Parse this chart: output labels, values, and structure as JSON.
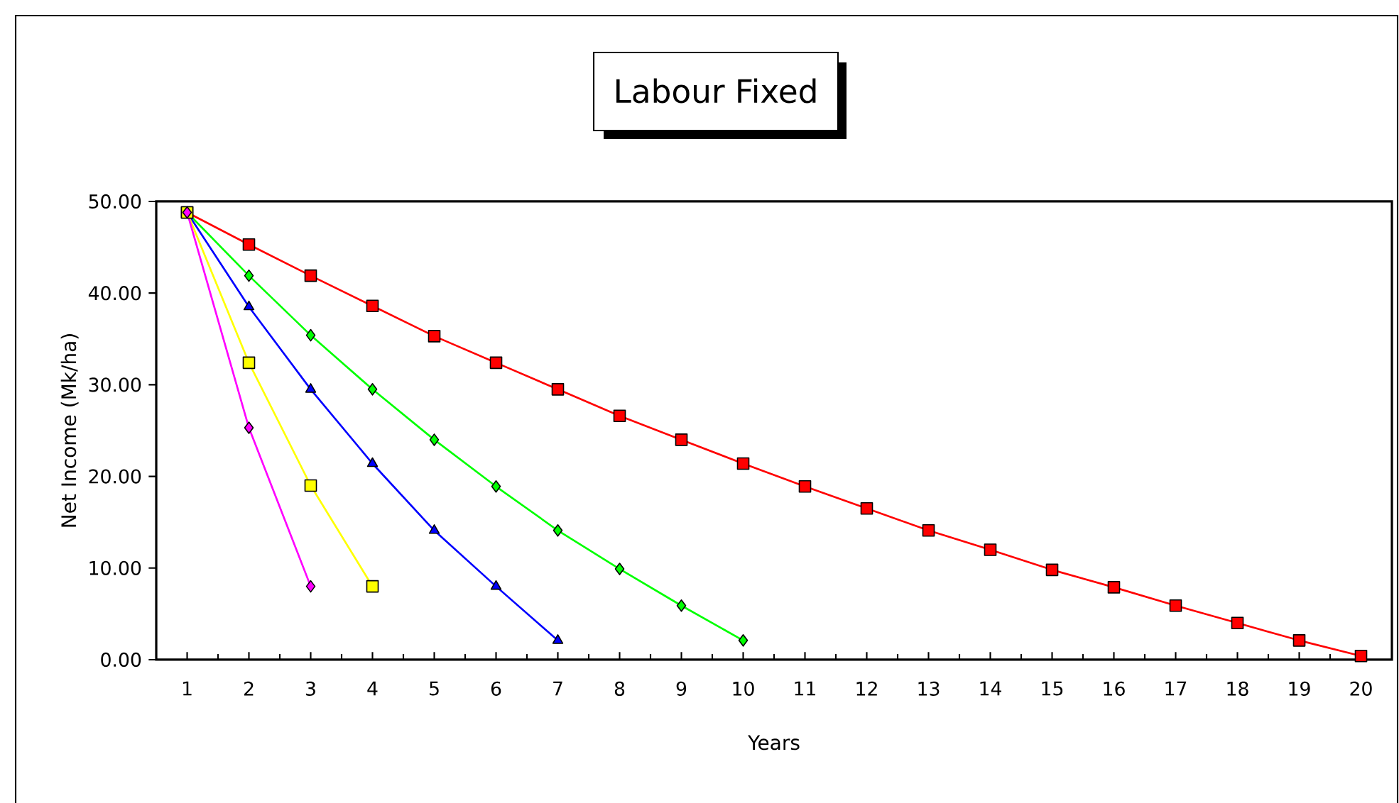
{
  "chart_data": {
    "type": "line",
    "title": "Labour Fixed",
    "xlabel": "Years",
    "ylabel": "Net Income (Mk/ha)",
    "categories": [
      "1",
      "2",
      "3",
      "4",
      "5",
      "6",
      "7",
      "8",
      "9",
      "10",
      "11",
      "12",
      "13",
      "14",
      "15",
      "16",
      "17",
      "18",
      "19",
      "20"
    ],
    "ylim": [
      0,
      50
    ],
    "yticks": [
      {
        "value": 0,
        "label": "0.00"
      },
      {
        "value": 10,
        "label": "10.00"
      },
      {
        "value": 20,
        "label": "20.00"
      },
      {
        "value": 30,
        "label": "30.00"
      },
      {
        "value": 40,
        "label": "40.00"
      },
      {
        "value": 50,
        "label": "50.00"
      }
    ],
    "line_style": "solid",
    "series": [
      {
        "color": "#ff0000",
        "marker": "square",
        "values": [
          48.8,
          45.3,
          41.9,
          38.6,
          35.3,
          32.4,
          29.5,
          26.6,
          24.0,
          21.4,
          18.9,
          16.5,
          14.1,
          12.0,
          9.8,
          7.9,
          5.9,
          4.0,
          2.1,
          0.4
        ]
      },
      {
        "color": "#00ff00",
        "marker": "diamond",
        "values": [
          48.8,
          41.9,
          35.4,
          29.5,
          24.0,
          18.9,
          14.1,
          9.9,
          5.9,
          2.1,
          null,
          null,
          null,
          null,
          null,
          null,
          null,
          null,
          null,
          null
        ]
      },
      {
        "color": "#0000ff",
        "marker": "triangle",
        "values": [
          48.8,
          38.5,
          29.5,
          21.4,
          14.1,
          8.0,
          2.1,
          null,
          null,
          null,
          null,
          null,
          null,
          null,
          null,
          null,
          null,
          null,
          null,
          null
        ]
      },
      {
        "color": "#ffff00",
        "marker": "square",
        "values": [
          48.8,
          32.4,
          19.0,
          8.0,
          null,
          null,
          null,
          null,
          null,
          null,
          null,
          null,
          null,
          null,
          null,
          null,
          null,
          null,
          null,
          null
        ]
      },
      {
        "color": "#ff00ff",
        "marker": "diamond",
        "values": [
          48.8,
          25.3,
          8.0,
          null,
          null,
          null,
          null,
          null,
          null,
          null,
          null,
          null,
          null,
          null,
          null,
          null,
          null,
          null,
          null,
          null
        ]
      }
    ]
  }
}
